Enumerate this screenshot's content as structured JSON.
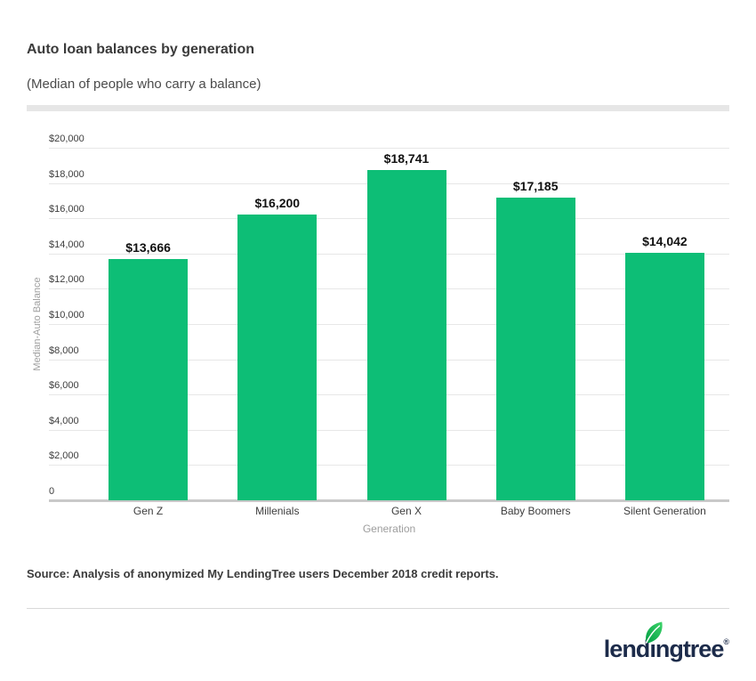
{
  "header": {
    "title": "Auto loan balances by generation",
    "subtitle": "(Median of people who carry a balance)"
  },
  "chart_data": {
    "type": "bar",
    "title": "Auto loan balances by generation",
    "subtitle": "(Median of people who carry a balance)",
    "categories": [
      "Gen Z",
      "Millenials",
      "Gen X",
      "Baby Boomers",
      "Silent Generation"
    ],
    "values": [
      13666,
      16200,
      18741,
      17185,
      14042
    ],
    "value_labels": [
      "$13,666",
      "$16,200",
      "$18,741",
      "$17,185",
      "$14,042"
    ],
    "xlabel": "Generation",
    "ylabel": "Median-Auto Balance",
    "ylim": [
      0,
      20000
    ],
    "y_ticks": [
      {
        "value": 20000,
        "label": "$20,000"
      },
      {
        "value": 18000,
        "label": "$18,000"
      },
      {
        "value": 16000,
        "label": "$16,000"
      },
      {
        "value": 14000,
        "label": "$14,000"
      },
      {
        "value": 12000,
        "label": "$12,000"
      },
      {
        "value": 10000,
        "label": "$10,000"
      },
      {
        "value": 8000,
        "label": "$8,000"
      },
      {
        "value": 6000,
        "label": "$6,000"
      },
      {
        "value": 4000,
        "label": "$4,000"
      },
      {
        "value": 2000,
        "label": "$2,000"
      },
      {
        "value": 0,
        "label": "0"
      }
    ],
    "grid": true,
    "legend": false,
    "bar_color": "#0dbe76",
    "grid_color": "#e7e7e7",
    "axis_color": "#c9c9c9"
  },
  "source": {
    "text": "Source: Analysis of anonymized My LendingTree users December 2018 credit reports."
  },
  "footer": {
    "logo_pre": "lend",
    "logo_i": "ı",
    "logo_post": "ngtree",
    "logo_mark": "®",
    "brand_navy": "#1c2b4a",
    "leaf_green": "#1eb955"
  }
}
